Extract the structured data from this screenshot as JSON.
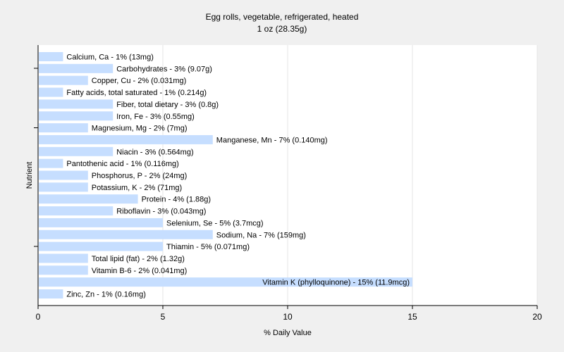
{
  "chart_data": {
    "type": "bar",
    "orientation": "horizontal",
    "title": "Egg rolls, vegetable, refrigerated, heated",
    "subtitle": "1 oz (28.35g)",
    "xlabel": "% Daily Value",
    "ylabel": "Nutrient",
    "xlim": [
      0,
      20
    ],
    "xticks": [
      "0",
      "5",
      "10",
      "15",
      "20"
    ],
    "grid": true,
    "bar_color": "#c6deff",
    "categories": [
      "Calcium, Ca",
      "Carbohydrates",
      "Copper, Cu",
      "Fatty acids, total saturated",
      "Fiber, total dietary",
      "Iron, Fe",
      "Magnesium, Mg",
      "Manganese, Mn",
      "Niacin",
      "Pantothenic acid",
      "Phosphorus, P",
      "Potassium, K",
      "Protein",
      "Riboflavin",
      "Selenium, Se",
      "Sodium, Na",
      "Thiamin",
      "Total lipid (fat)",
      "Vitamin B-6",
      "Vitamin K (phylloquinone)",
      "Zinc, Zn"
    ],
    "values": [
      1,
      3,
      2,
      1,
      3,
      3,
      2,
      7,
      3,
      1,
      2,
      2,
      4,
      3,
      5,
      7,
      5,
      2,
      2,
      15,
      1
    ],
    "labels": [
      "Calcium, Ca - 1% (13mg)",
      "Carbohydrates - 3% (9.07g)",
      "Copper, Cu - 2% (0.031mg)",
      "Fatty acids, total saturated - 1% (0.214g)",
      "Fiber, total dietary - 3% (0.8g)",
      "Iron, Fe - 3% (0.55mg)",
      "Magnesium, Mg - 2% (7mg)",
      "Manganese, Mn - 7% (0.140mg)",
      "Niacin - 3% (0.564mg)",
      "Pantothenic acid - 1% (0.116mg)",
      "Phosphorus, P - 2% (24mg)",
      "Potassium, K - 2% (71mg)",
      "Protein - 4% (1.88g)",
      "Riboflavin - 3% (0.043mg)",
      "Selenium, Se - 5% (3.7mcg)",
      "Sodium, Na - 7% (159mg)",
      "Thiamin - 5% (0.071mg)",
      "Total lipid (fat) - 2% (1.32g)",
      "Vitamin B-6 - 2% (0.041mg)",
      "Vitamin K (phylloquinone) - 15% (11.9mcg)",
      "Zinc, Zn - 1% (0.16mg)"
    ]
  }
}
